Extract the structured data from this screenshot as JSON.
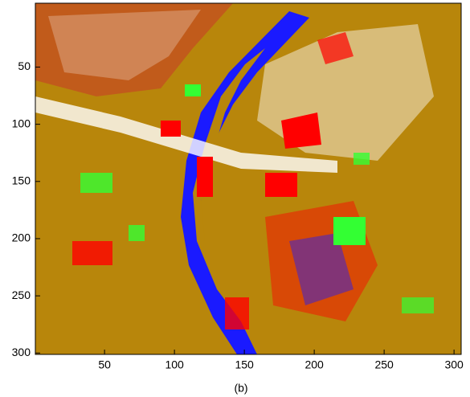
{
  "chart_data": {
    "type": "image",
    "caption": "(b)",
    "xlim": [
      0.5,
      300.5
    ],
    "xticks": [
      50,
      100,
      150,
      200,
      250,
      300
    ],
    "ylim": [
      0.5,
      300.5
    ],
    "yticks": [
      50,
      100,
      150,
      200,
      250,
      300
    ],
    "y_reversed": true
  }
}
